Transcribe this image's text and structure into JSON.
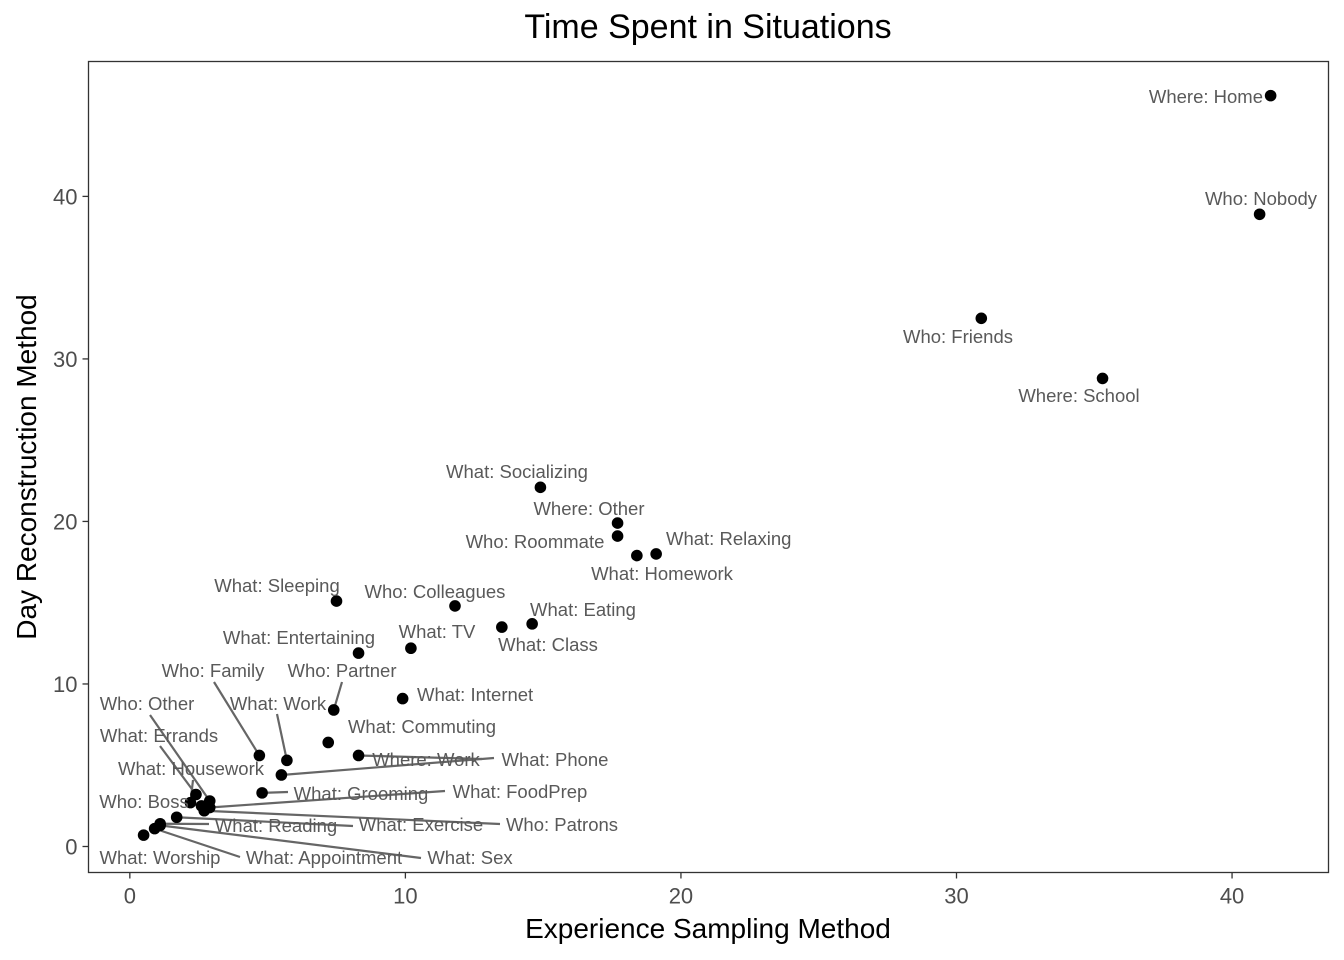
{
  "chart_data": {
    "type": "scatter",
    "title": "Time Spent in Situations",
    "xlabel": "Experience Sampling Method",
    "ylabel": "Day Reconstruction Method",
    "xlim": [
      -1.5,
      43.5
    ],
    "ylim": [
      -1.6,
      48.3
    ],
    "xticks": [
      0,
      10,
      20,
      30,
      40
    ],
    "yticks": [
      0,
      10,
      20,
      30,
      40
    ],
    "grid": false,
    "legend": "none",
    "point_color": "#000000",
    "label_color": "#595959",
    "points": [
      {
        "label": "Where: Home",
        "x": 41.4,
        "y": 46.2
      },
      {
        "label": "Who: Nobody",
        "x": 41.0,
        "y": 38.9
      },
      {
        "label": "Who: Friends",
        "x": 30.9,
        "y": 32.5
      },
      {
        "label": "Where: School",
        "x": 35.3,
        "y": 28.8
      },
      {
        "label": "What: Socializing",
        "x": 14.9,
        "y": 22.1
      },
      {
        "label": "Where: Other",
        "x": 17.7,
        "y": 19.9
      },
      {
        "label": "Who: Roommate",
        "x": 17.7,
        "y": 19.1
      },
      {
        "label": "What: Relaxing",
        "x": 19.1,
        "y": 18.0
      },
      {
        "label": "What: Homework",
        "x": 18.4,
        "y": 17.9
      },
      {
        "label": "What: Sleeping",
        "x": 7.5,
        "y": 15.1
      },
      {
        "label": "Who: Colleagues",
        "x": 11.8,
        "y": 14.8
      },
      {
        "label": "What: Eating",
        "x": 14.6,
        "y": 13.7
      },
      {
        "label": "What: Class",
        "x": 13.5,
        "y": 13.5
      },
      {
        "label": "What: TV",
        "x": 10.2,
        "y": 12.2
      },
      {
        "label": "What: Entertaining",
        "x": 8.3,
        "y": 11.9
      },
      {
        "label": "What: Internet",
        "x": 9.9,
        "y": 9.1
      },
      {
        "label": "Who: Partner",
        "x": 7.4,
        "y": 8.4
      },
      {
        "label": "What: Commuting",
        "x": 7.2,
        "y": 6.4
      },
      {
        "label": "Who: Family",
        "x": 4.7,
        "y": 5.6
      },
      {
        "label": "Where: Work",
        "x": 8.3,
        "y": 5.6
      },
      {
        "label": "What: Work",
        "x": 5.7,
        "y": 5.3
      },
      {
        "label": "What: Phone",
        "x": 5.5,
        "y": 4.4
      },
      {
        "label": "What: Grooming",
        "x": 4.8,
        "y": 3.3
      },
      {
        "label": "What: Errands",
        "x": 2.4,
        "y": 3.2
      },
      {
        "label": "Who: Other",
        "x": 2.9,
        "y": 2.8
      },
      {
        "label": "What: Housework",
        "x": 2.2,
        "y": 2.7
      },
      {
        "label": "Who: Boss",
        "x": 2.6,
        "y": 2.5
      },
      {
        "label": "What: FoodPrep",
        "x": 2.9,
        "y": 2.4
      },
      {
        "label": "Who: Patrons",
        "x": 2.7,
        "y": 2.2
      },
      {
        "label": "What: Exercise",
        "x": 1.7,
        "y": 1.8
      },
      {
        "label": "What: Reading",
        "x": 1.1,
        "y": 1.4
      },
      {
        "label": "What: Appointment",
        "x": 0.9,
        "y": 1.1
      },
      {
        "label": "What: Sex",
        "x": 1.1,
        "y": 1.3
      },
      {
        "label": "What: Worship",
        "x": 0.5,
        "y": 0.7
      }
    ]
  }
}
